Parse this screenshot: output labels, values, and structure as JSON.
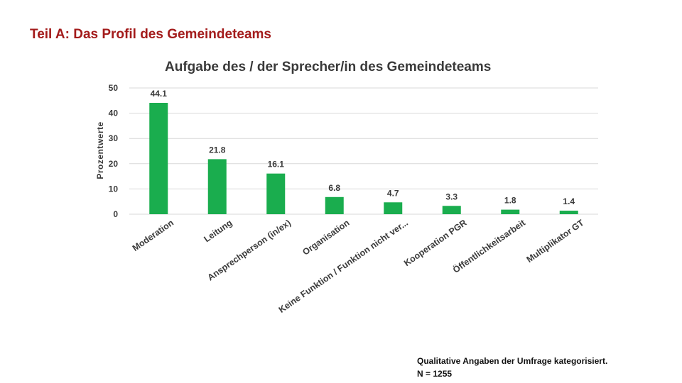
{
  "header": {
    "title": "Teil A: Das Profil des Gemeindeteams"
  },
  "footnote": {
    "line1": "Qualitative Angaben der Umfrage kategorisiert.",
    "line2": "N = 1255"
  },
  "colors": {
    "bar": "#1aad4e",
    "title": "#a31b1b",
    "text": "#3a3a3a",
    "grid": "#d9d9d9"
  },
  "chart_data": {
    "type": "bar",
    "title": "Aufgabe des / der Sprecher/in des Gemeindeteams",
    "xlabel": "",
    "ylabel": "Prozentwerte",
    "ylim": [
      0,
      50
    ],
    "yticks": [
      0,
      10,
      20,
      30,
      40,
      50
    ],
    "grid": true,
    "legend": "none",
    "categories": [
      "Moderation",
      "Leitung",
      "Ansprechperson (in/ex)",
      "Organisation",
      "Keine Funktion / Funktion nicht ver...",
      "Kooperation PGR",
      "Öffentlichkeitsarbeit",
      "Multiplikator GT"
    ],
    "values": [
      44.1,
      21.8,
      16.1,
      6.8,
      4.7,
      3.3,
      1.8,
      1.4
    ],
    "data_labels": [
      "44.1",
      "21.8",
      "16.1",
      "6.8",
      "4.7",
      "3.3",
      "1.8",
      "1.4"
    ]
  }
}
